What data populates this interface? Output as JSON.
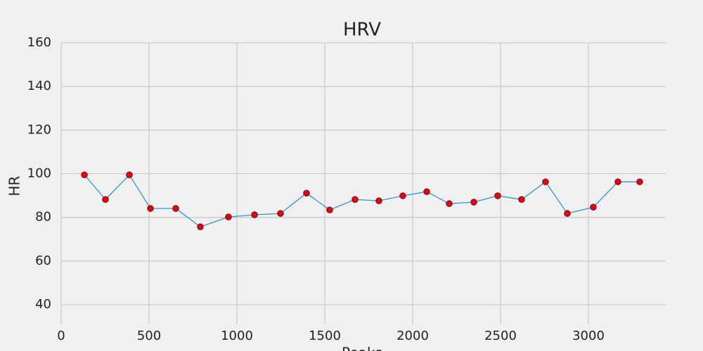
{
  "chart_data": {
    "type": "line",
    "title": "HRV",
    "xlabel": "Peaks",
    "ylabel": "HR",
    "x": [
      132,
      252,
      388,
      508,
      652,
      792,
      952,
      1100,
      1248,
      1396,
      1528,
      1672,
      1808,
      1944,
      2080,
      2208,
      2348,
      2484,
      2620,
      2756,
      2880,
      3028,
      3168,
      3292
    ],
    "values": [
      99.5,
      88.2,
      99.5,
      84.1,
      84.1,
      75.7,
      80.2,
      81.2,
      81.8,
      91.1,
      83.4,
      88.2,
      87.6,
      89.9,
      91.8,
      86.3,
      87.0,
      89.9,
      88.2,
      96.3,
      81.8,
      84.7,
      96.3,
      96.3
    ],
    "line_color": "#1f8fcf",
    "marker_color": "#e8000b",
    "xlim": [
      0,
      3440
    ],
    "ylim": [
      31,
      160
    ],
    "xticks": [
      0,
      500,
      1000,
      1500,
      2000,
      2500,
      3000
    ],
    "yticks": [
      40,
      60,
      80,
      100,
      120,
      140,
      160
    ],
    "grid": true
  }
}
